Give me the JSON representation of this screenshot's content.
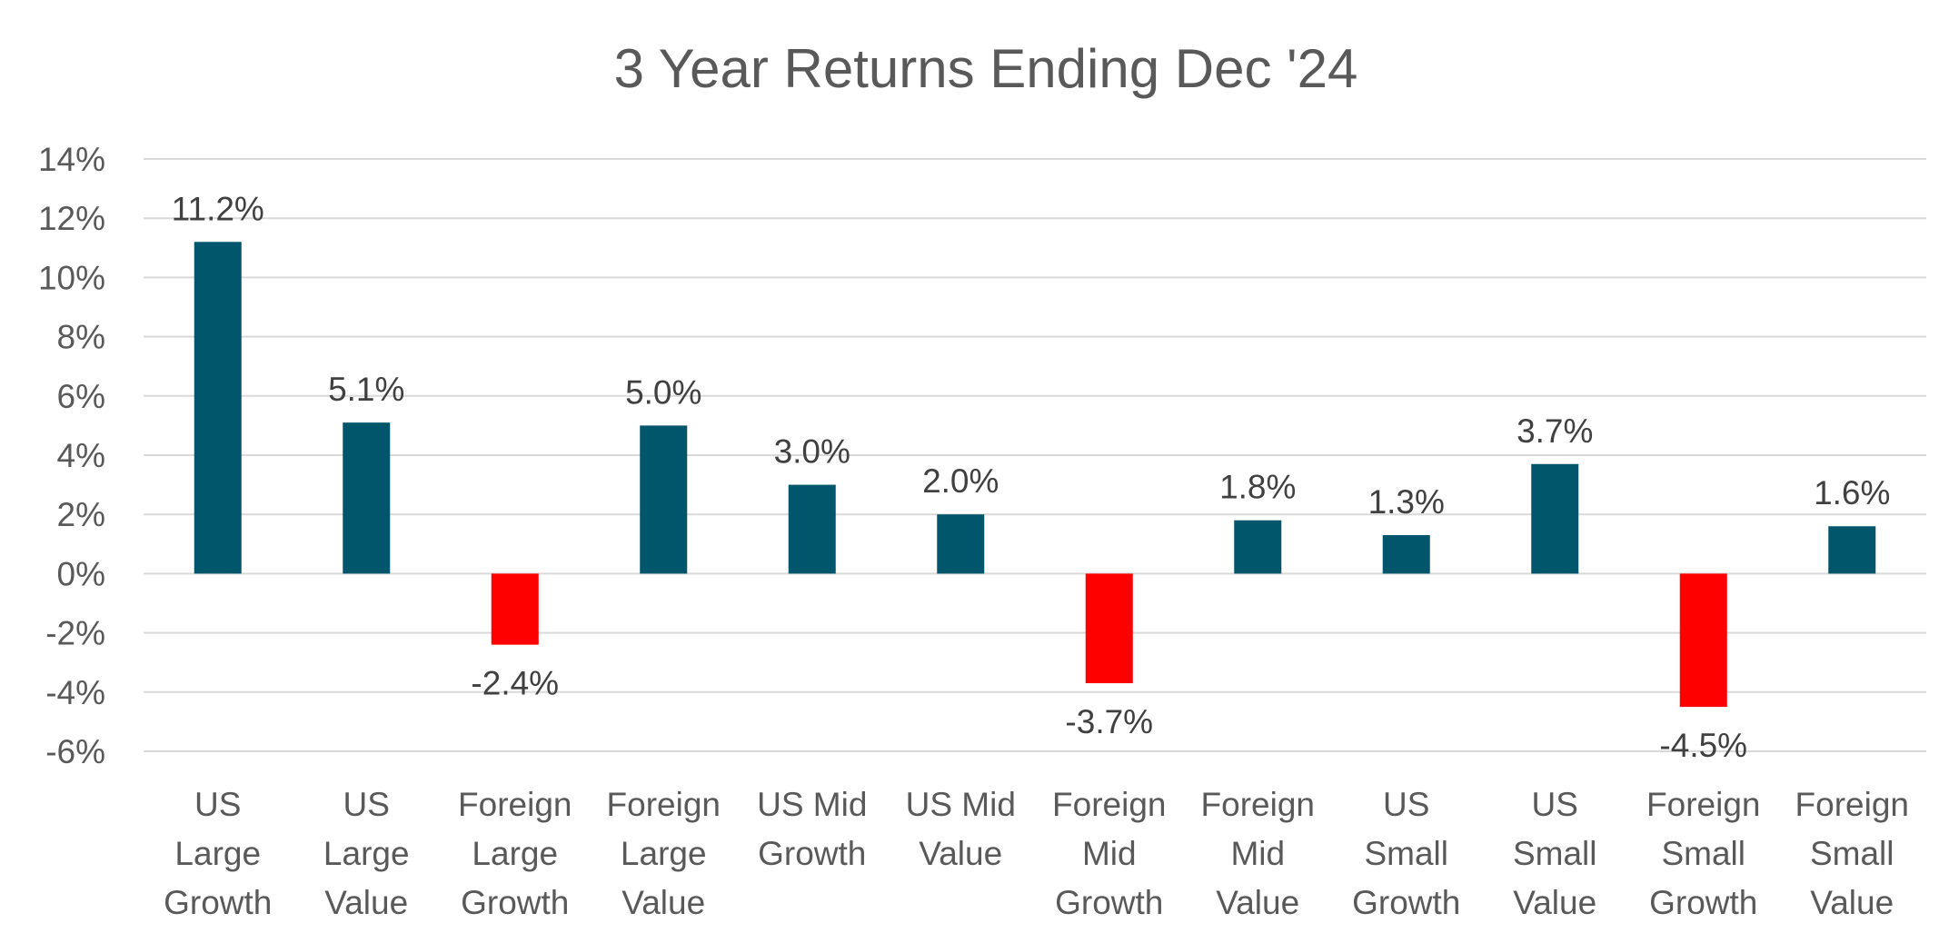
{
  "chart_data": {
    "type": "bar",
    "title": "3 Year Returns Ending Dec '24",
    "categories": [
      [
        "US",
        "Large",
        "Growth"
      ],
      [
        "US",
        "Large",
        "Value"
      ],
      [
        "Foreign",
        "Large",
        "Growth"
      ],
      [
        "Foreign",
        "Large",
        "Value"
      ],
      [
        "US Mid",
        "Growth"
      ],
      [
        "US Mid",
        "Value"
      ],
      [
        "Foreign",
        "Mid",
        "Growth"
      ],
      [
        "Foreign",
        "Mid",
        "Value"
      ],
      [
        "US",
        "Small",
        "Growth"
      ],
      [
        "US",
        "Small",
        "Value"
      ],
      [
        "Foreign",
        "Small",
        "Growth"
      ],
      [
        "Foreign",
        "Small",
        "Value"
      ]
    ],
    "values": [
      11.2,
      5.1,
      -2.4,
      5.0,
      3.0,
      2.0,
      -3.7,
      1.8,
      1.3,
      3.7,
      -4.5,
      1.6
    ],
    "data_labels": [
      "11.2%",
      "5.1%",
      "-2.4%",
      "5.0%",
      "3.0%",
      "2.0%",
      "-3.7%",
      "1.8%",
      "1.3%",
      "3.7%",
      "-4.5%",
      "1.6%"
    ],
    "y_ticks": [
      14,
      12,
      10,
      8,
      6,
      4,
      2,
      0,
      -2,
      -4,
      -6
    ],
    "y_tick_labels": [
      "14%",
      "12%",
      "10%",
      "8%",
      "6%",
      "4%",
      "2%",
      "0%",
      "-2%",
      "-4%",
      "-6%"
    ],
    "ylim": [
      -6,
      14
    ],
    "xlabel": "",
    "ylabel": "",
    "grid": true,
    "legend": "none",
    "colors": {
      "positive": "#02566B",
      "negative": "#FF0000",
      "grid": "#D9D9D9",
      "text": "#595959",
      "data_label": "#404040"
    }
  }
}
